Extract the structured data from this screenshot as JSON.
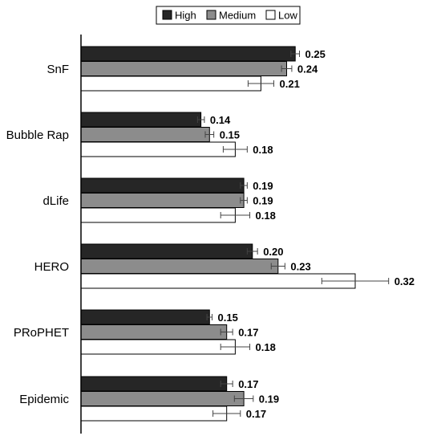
{
  "chart_data": {
    "type": "bar",
    "orientation": "horizontal",
    "categories": [
      "SnF",
      "Bubble Rap",
      "dLife",
      "HERO",
      "PRoPHET",
      "Epidemic"
    ],
    "series": [
      {
        "name": "High",
        "color": "#262626",
        "values": [
          0.25,
          0.14,
          0.19,
          0.2,
          0.15,
          0.17
        ],
        "value_labels": [
          "0.25",
          "0.14",
          "0.19",
          "0.20",
          "0.15",
          "0.17"
        ],
        "error": [
          0.005,
          0.004,
          0.004,
          0.006,
          0.003,
          0.007
        ]
      },
      {
        "name": "Medium",
        "color": "#8c8c8c",
        "values": [
          0.24,
          0.15,
          0.19,
          0.23,
          0.17,
          0.19
        ],
        "value_labels": [
          "0.24",
          "0.15",
          "0.19",
          "0.23",
          "0.17",
          "0.19"
        ],
        "error": [
          0.006,
          0.005,
          0.004,
          0.008,
          0.007,
          0.011
        ]
      },
      {
        "name": "Low",
        "color": "#ffffff",
        "values": [
          0.21,
          0.18,
          0.18,
          0.32,
          0.18,
          0.17
        ],
        "value_labels": [
          "0.21",
          "0.18",
          "0.18",
          "0.32",
          "0.18",
          "0.17"
        ],
        "error": [
          0.015,
          0.014,
          0.017,
          0.039,
          0.017,
          0.016
        ]
      }
    ],
    "xlim": [
      0,
      0.32
    ],
    "grid": false,
    "legend_position": "top"
  }
}
